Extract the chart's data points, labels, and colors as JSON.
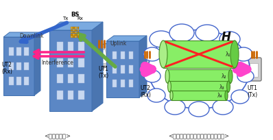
{
  "bg_color": "#ffffff",
  "left_panel": {
    "title_bottom": "<端末間干渉>",
    "bs_label": "BS",
    "tx_label": "Tx",
    "rx_label": "Rx",
    "uplink_label": "Uplink",
    "downlink_label": "Downlink",
    "ut2_label": "UT2\n(Rx)",
    "ut1_label": "UT1\n(Tx)",
    "interference_label": "Interference",
    "building_color": "#5b87c5",
    "building_top": "#7aaae0",
    "building_side": "#4a75b0",
    "building_edge": "#4070b0",
    "window_color": "#c8d8f0",
    "downlink_arrow_color": "#3366cc",
    "uplink_arrow_color": "#66aa44",
    "interference_arrow_color": "#ff2288",
    "antenna_color_a": "#ddaa33",
    "antenna_color_b": "#cc8800"
  },
  "right_panel": {
    "title_bottom": "<端末間の固有ビームフォーミング>",
    "h_label": "H",
    "cloud_edge": "#4466cc",
    "cylinder_color": "#88ee66",
    "cylinder_edge": "#448822",
    "cylinder_side": "#55bb33",
    "cross_color": "#ff2222",
    "pink_arrow_color": "#ff44cc",
    "lambda_labels": [
      "λ₁",
      "λ₂",
      "λ₃",
      "λ₄"
    ],
    "ut2_label": "UT2\n(Rx)",
    "ut1_label": "UT1\n(Tx)"
  }
}
